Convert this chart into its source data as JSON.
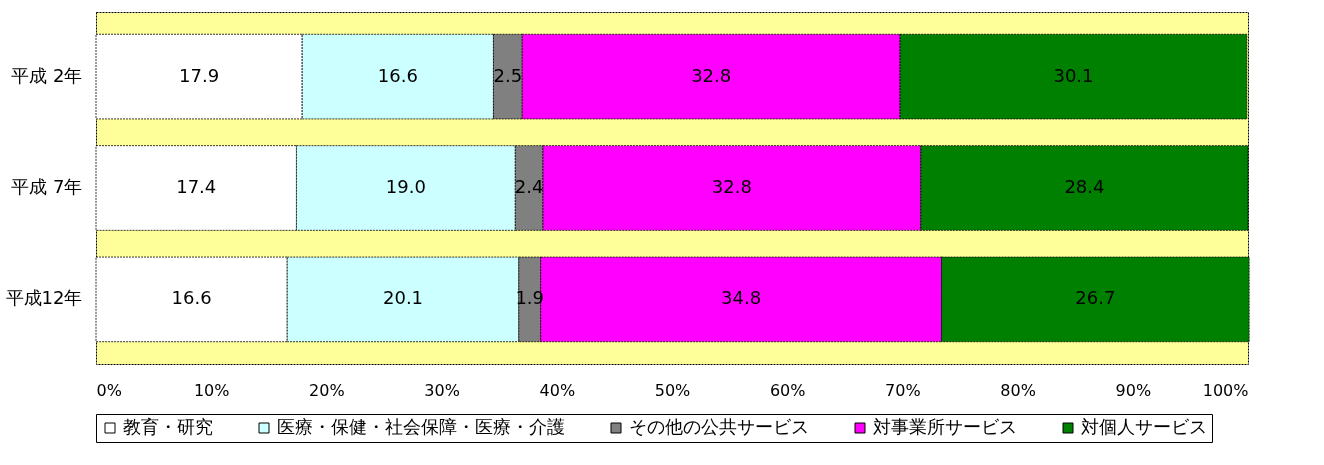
{
  "chart_data": {
    "type": "bar",
    "orientation": "horizontal",
    "stacked": true,
    "categories": [
      "平成 2年",
      "平成 7年",
      "平成12年"
    ],
    "series": [
      {
        "name": "教育・研究",
        "color": "#ffffff",
        "values": [
          17.9,
          17.4,
          16.6
        ],
        "value_labels": [
          "17.9",
          "17.4",
          "16.6"
        ]
      },
      {
        "name": "医療・保健・社会保障・医療・介護",
        "color": "#ccffff",
        "values": [
          16.6,
          19.0,
          20.1
        ],
        "value_labels": [
          "16.6",
          "19.0",
          "20.1"
        ]
      },
      {
        "name": "その他の公共サービス",
        "color": "#808080",
        "values": [
          2.5,
          2.4,
          1.9
        ],
        "value_labels": [
          "2.5",
          "2.4",
          "1.9"
        ]
      },
      {
        "name": "対事業所サービス",
        "color": "#ff00ff",
        "values": [
          32.8,
          32.8,
          34.8
        ],
        "value_labels": [
          "32.8",
          "32.8",
          "34.8"
        ]
      },
      {
        "name": "対個人サービス",
        "color": "#008000",
        "values": [
          30.1,
          28.4,
          26.7
        ],
        "value_labels": [
          "30.1",
          "28.4",
          "26.7"
        ]
      }
    ],
    "xlim": [
      0,
      100
    ],
    "xticks": [
      {
        "value": 0,
        "label": "0%"
      },
      {
        "value": 10,
        "label": "10%"
      },
      {
        "value": 20,
        "label": "20%"
      },
      {
        "value": 30,
        "label": "30%"
      },
      {
        "value": 40,
        "label": "40%"
      },
      {
        "value": 50,
        "label": "50%"
      },
      {
        "value": 60,
        "label": "60%"
      },
      {
        "value": 70,
        "label": "70%"
      },
      {
        "value": 80,
        "label": "80%"
      },
      {
        "value": 90,
        "label": "90%"
      },
      {
        "value": 100,
        "label": "100%"
      }
    ],
    "legend": "bottom"
  }
}
